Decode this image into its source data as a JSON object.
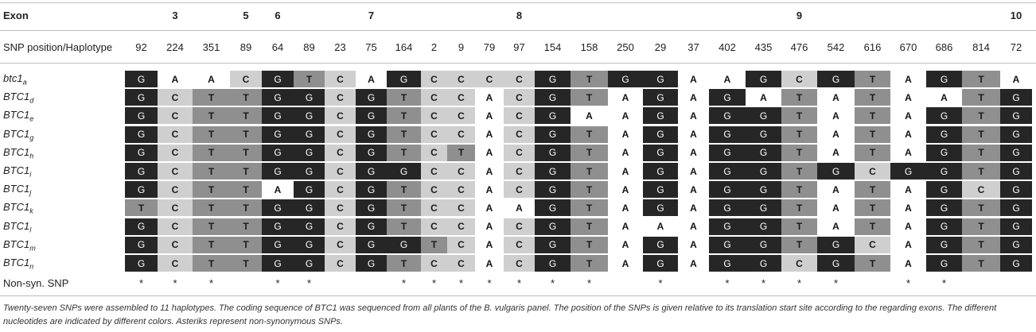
{
  "table": {
    "exon_header": "Exon",
    "position_header": "SNP position/Haplotype",
    "nonsyn_header": "Non-syn. SNP",
    "exon_labels": [
      {
        "label": "3",
        "col": 1
      },
      {
        "label": "5",
        "col": 3
      },
      {
        "label": "6",
        "col": 4
      },
      {
        "label": "7",
        "col": 7
      },
      {
        "label": "8",
        "col": 12
      },
      {
        "label": "9",
        "col": 20
      },
      {
        "label": "10",
        "col": 26
      }
    ],
    "positions": [
      "92",
      "224",
      "351",
      "89",
      "64",
      "89",
      "23",
      "75",
      "164",
      "2",
      "9",
      "79",
      "97",
      "154",
      "158",
      "250",
      "29",
      "37",
      "402",
      "435",
      "476",
      "542",
      "616",
      "670",
      "686",
      "814",
      "72"
    ],
    "haplotypes": [
      {
        "base": "btc1",
        "sub": "a",
        "seq": "GAACGTCAGCCCCGTGGAAGCGTAGTA"
      },
      {
        "base": "BTC1",
        "sub": "d",
        "seq": "GCTTGGCGTCCACGTAGAGATATAATG"
      },
      {
        "base": "BTC1",
        "sub": "e",
        "seq": "GCTTGGCGTCCACGAAGAGGTATAGTG"
      },
      {
        "base": "BTC1",
        "sub": "g",
        "seq": "GCTTGGCGTCCACGTAGAGGTATAGTG"
      },
      {
        "base": "BTC1",
        "sub": "h",
        "seq": "GCTTGGCGTCTACGTAGAGGTATAGTG"
      },
      {
        "base": "BTC1",
        "sub": "i",
        "seq": "GCTTGGCGGCCACGTAGAGGTGCGGTG"
      },
      {
        "base": "BTC1",
        "sub": "j",
        "seq": "GCTTAGCGTCCACGTAGAGGTATAGCG"
      },
      {
        "base": "BTC1",
        "sub": "k",
        "seq": "TCTTGGCGTCCAAGTAGAGGTATAGTG"
      },
      {
        "base": "BTC1",
        "sub": "l",
        "seq": "GCTTGGCGTCCACGTAAAGGTATAGTG"
      },
      {
        "base": "BTC1",
        "sub": "m",
        "seq": "GCTTGGCGGTCACGTAGAGGTGCAGTG"
      },
      {
        "base": "BTC1",
        "sub": "n",
        "seq": "GCTTGGCGTCCACGTAGAGGCGTAGTG"
      }
    ],
    "nonsyn_marks": [
      "*",
      "*",
      "*",
      "",
      "*",
      "*",
      "",
      "",
      "*",
      "*",
      "*",
      "*",
      "*",
      "*",
      "*",
      "",
      "*",
      "",
      "*",
      "*",
      "*",
      "*",
      "",
      "*",
      "*",
      "",
      ""
    ]
  },
  "footnote": "Twenty-seven SNPs were assembled to 11 haplotypes. The coding sequence of BTC1 was sequenced from all plants of the B. vulgaris panel. The position of the SNPs is given relative to its translation start site according to the regarding exons. The different nucleotides are indicated by different colors. Asteriks represent non-synonymous SNPs.",
  "colors": {
    "G": "#262626",
    "T": "#8f8f8f",
    "C": "#cfcfcf",
    "A": "#ffffff"
  }
}
